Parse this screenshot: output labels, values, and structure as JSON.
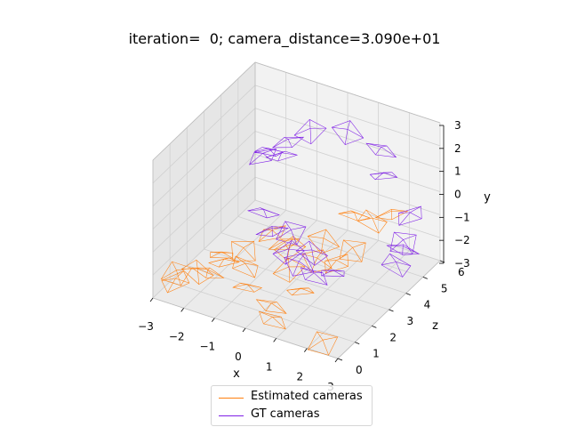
{
  "chart_data": {
    "type": "scatter-3d",
    "title": "iteration=  0; camera_distance=3.090e+01",
    "xlabel": "x",
    "ylabel": "y",
    "zlabel": "z",
    "xlim": [
      -3,
      3
    ],
    "ylim": [
      -3,
      3
    ],
    "zlim": [
      0,
      6
    ],
    "x_ticks": [
      "−3",
      "−2",
      "−1",
      "0",
      "1",
      "2",
      "3"
    ],
    "y_ticks": [
      "−3",
      "−2",
      "−1",
      "0",
      "1",
      "2",
      "3"
    ],
    "z_ticks": [
      "0",
      "1",
      "2",
      "3",
      "4",
      "5",
      "6"
    ],
    "grid": true,
    "legend_position": "bottom-center",
    "series": [
      {
        "name": "Estimated cameras",
        "color": "#ff7f0e",
        "marker": "camera-wireframe",
        "points": [
          [
            -2.9,
            -2.6,
            1.2
          ],
          [
            -2.6,
            -2.9,
            1.9
          ],
          [
            -2.1,
            -2.5,
            1.6
          ],
          [
            -1.8,
            -2.2,
            2.0
          ],
          [
            -2.6,
            -2.4,
            0.6
          ],
          [
            -1.5,
            -2.0,
            2.6
          ],
          [
            -1.0,
            -1.9,
            1.8
          ],
          [
            -0.6,
            -2.2,
            1.2
          ],
          [
            -0.4,
            -1.5,
            3.0
          ],
          [
            0.2,
            -1.8,
            2.2
          ],
          [
            0.6,
            -1.3,
            3.5
          ],
          [
            0.4,
            -2.3,
            0.8
          ],
          [
            0.9,
            -2.0,
            1.6
          ],
          [
            1.3,
            -1.6,
            3.0
          ],
          [
            1.6,
            -1.2,
            3.4
          ],
          [
            1.8,
            -0.4,
            4.2
          ],
          [
            1.1,
            -0.6,
            4.4
          ],
          [
            2.2,
            -0.2,
            4.6
          ],
          [
            -0.1,
            -1.4,
            2.8
          ],
          [
            1.0,
            -1.2,
            2.4
          ],
          [
            0.6,
            -2.6,
            0.5
          ],
          [
            -2.1,
            -2.3,
            2.4
          ],
          [
            -0.9,
            -1.4,
            3.2
          ],
          [
            2.4,
            -2.6,
            0.2
          ]
        ]
      },
      {
        "name": "GT cameras",
        "color": "#7f1fe6",
        "marker": "camera-wireframe",
        "points": [
          [
            -2.0,
            0.4,
            5.0
          ],
          [
            -1.6,
            0.7,
            5.4
          ],
          [
            -1.1,
            1.1,
            5.8
          ],
          [
            0.0,
            1.4,
            6.0
          ],
          [
            1.2,
            1.3,
            5.8
          ],
          [
            1.5,
            0.6,
            5.4
          ],
          [
            2.8,
            0.0,
            4.6
          ],
          [
            2.8,
            -0.9,
            4.2
          ],
          [
            2.9,
            -1.4,
            3.6
          ],
          [
            -1.4,
            -1.0,
            3.6
          ],
          [
            -0.9,
            -1.3,
            3.2
          ],
          [
            -0.2,
            -1.7,
            2.9
          ],
          [
            0.3,
            -1.8,
            2.6
          ],
          [
            0.9,
            -1.9,
            2.4
          ],
          [
            1.4,
            -1.7,
            2.6
          ],
          [
            -2.2,
            0.1,
            5.0
          ],
          [
            -0.4,
            -1.3,
            3.4
          ],
          [
            0.5,
            -1.5,
            3.0
          ],
          [
            2.9,
            -1.0,
            4.0
          ],
          [
            -1.7,
            0.2,
            5.2
          ]
        ]
      }
    ]
  }
}
